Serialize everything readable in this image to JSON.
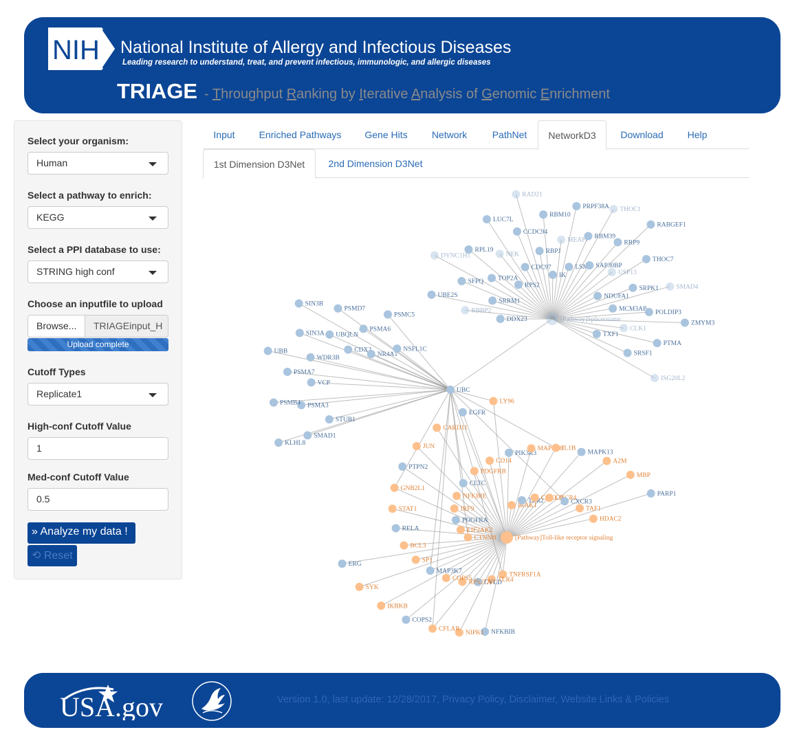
{
  "header": {
    "logo_text": "NIH",
    "institute": "National Institute of Allergy and Infectious Diseases",
    "tagline": "Leading research to understand, treat, and prevent infectious, immunologic, and allergic diseases",
    "app_name": "TRIAGE",
    "app_subtitle_parts": [
      "- ",
      "T",
      "hroughput ",
      "R",
      "anking by ",
      "I",
      "terative ",
      "A",
      "nalysis of ",
      "G",
      "enomic ",
      "E",
      "nrichment"
    ]
  },
  "sidebar": {
    "organism_label": "Select your organism:",
    "organism_value": "Human",
    "pathway_label": "Select a pathway to enrich:",
    "pathway_value": "KEGG",
    "ppi_label": "Select a PPI database to use:",
    "ppi_value": "STRING high conf",
    "upload_label": "Choose an inputfile to upload",
    "browse_label": "Browse...",
    "file_name": "TRIAGEinput_H",
    "upload_status": "Upload complete",
    "cutoff_type_label": "Cutoff Types",
    "cutoff_type_value": "Replicate1",
    "high_cutoff_label": "High-conf Cutoff Value",
    "high_cutoff_value": "1",
    "med_cutoff_label": "Med-conf Cutoff Value",
    "med_cutoff_value": "0.5",
    "analyze_label": "» Analyze my data !",
    "reset_label": "⟲ Reset"
  },
  "tabs": [
    "Input",
    "Enriched Pathways",
    "Gene Hits",
    "Network",
    "PathNet",
    "NetworkD3",
    "Download",
    "Help"
  ],
  "active_tab": "NetworkD3",
  "subtabs": [
    "1st Dimension D3Net",
    "2nd Dimension D3Net"
  ],
  "active_subtab": "1st Dimension D3Net",
  "network": {
    "colors": {
      "blue": "#a9c4de",
      "orange": "#fdc08c",
      "blue_text": "#4a6f9c",
      "orange_text": "#e0843a",
      "link": "#888888"
    },
    "hubs": [
      "UBC",
      "[Pathway]Spliceosome",
      "[Pathway]Toll-like receptor signaling"
    ],
    "top_cluster": [
      "DDX23",
      "RBBP2",
      "UBE2S",
      "SRRM1",
      "SFPQ",
      "DYNC1H1",
      "TOP2A",
      "RPL19",
      "RPS2",
      "NEK",
      "LUC7L",
      "CDC97",
      "CCDC94",
      "RAD21",
      "RBPJ",
      "RBM10",
      "IK",
      "MEAPI",
      "PRPF38A",
      "LSM6",
      "RBM39",
      "THOC1",
      "SAP30BP",
      "RRP9",
      "RABGEF1",
      "USP13",
      "THOC7",
      "NDUFA1",
      "SRPK1",
      "SMAD4",
      "MCM3AP",
      "POLDIP3",
      "ZMYM3",
      "CLK1",
      "PTMA",
      "TXF1",
      "SRSF1",
      "ISG20L2"
    ],
    "left_cluster": [
      "STUB1",
      "SMAD1",
      "KLHL8",
      "PSMA3",
      "PSMB4",
      "VCP",
      "PSMA7",
      "UBB",
      "WDR3B",
      "SIN3A",
      "SIN3B",
      "UBQLN",
      "PSMD7",
      "CDX2",
      "PSMA6",
      "PSMC5",
      "NR4A1",
      "NSFL1C"
    ],
    "bottom_cluster": [
      "TNFRSF1A",
      "NFKBIB",
      "TLR4",
      "NIPK1",
      "CYLD",
      "CFLAR",
      "RPS27A",
      "COPS2",
      "COPS5",
      "IKBKB",
      "MAP3K7",
      "SYK",
      "SP1",
      "ERG",
      "BCL3",
      "CTNNB",
      "RELA",
      "EIF2AK2",
      "STAT1",
      "PDGFRA",
      "GNB2L1",
      "IRF9",
      "PTPN2",
      "NFKBIE",
      "JUN",
      "CLTC",
      "CARD11",
      "PDGFRB",
      "EGFR",
      "CD14",
      "LY96",
      "PIK3R3",
      "IRAK1",
      "MAP3K8",
      "TLR2",
      "IL1B",
      "CXCL11",
      "MAPK13",
      "CXCR4",
      "A2M",
      "CXCR3",
      "MBP",
      "TAF1",
      "PARP1",
      "HDAC2"
    ]
  },
  "footer": {
    "usa_logo": "USA.gov",
    "hhs_logo": "hhs-seal",
    "text": "Version 1.0, last update: 12/28/2017, Privacy Policy, Disclaimer, Website Links & Policies"
  }
}
